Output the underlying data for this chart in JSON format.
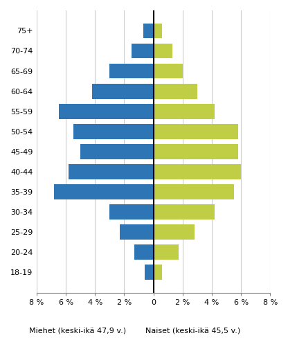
{
  "age_groups": [
    "75+",
    "70-74",
    "65-69",
    "60-64",
    "55-59",
    "50-54",
    "45-49",
    "40-44",
    "35-39",
    "30-34",
    "25-29",
    "20-24",
    "18-19"
  ],
  "men": [
    0.7,
    1.5,
    3.0,
    4.2,
    6.5,
    5.5,
    5.0,
    5.8,
    6.8,
    3.0,
    2.3,
    1.3,
    0.6
  ],
  "women": [
    0.6,
    1.3,
    2.0,
    3.0,
    4.2,
    5.8,
    5.8,
    6.0,
    5.5,
    4.2,
    2.8,
    1.7,
    0.6
  ],
  "men_color": "#2E75B6",
  "women_color": "#BFCE45",
  "xlim": 8,
  "xlabel_men": "Miehet (keski-ikä 47,9 v.)",
  "xlabel_women": "Naiset (keski-ikä 45,5 v.)",
  "xtick_positions": [
    -8,
    -6,
    -4,
    -2,
    0,
    2,
    4,
    6,
    8
  ],
  "xtick_labels": [
    "8 %",
    "6 %",
    "4 %",
    "2 %",
    "0",
    "2 %",
    "4 %",
    "6 %",
    "8 %"
  ],
  "background_color": "#FFFFFF",
  "grid_color": "#CCCCCC",
  "bar_height": 0.75,
  "figsize": [
    4.16,
    4.91
  ],
  "dpi": 100
}
